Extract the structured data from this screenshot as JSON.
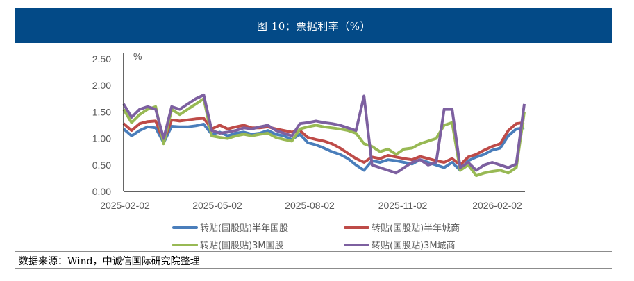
{
  "header": {
    "title": "图 10：票据利率（%）"
  },
  "source": {
    "text": "数据来源：Wind，中诚信国际研究院整理"
  },
  "legend": [
    {
      "label": "转贴(国股贴)半年国股",
      "color": "#4a7ebb"
    },
    {
      "label": "转贴(国股贴)半年城商",
      "color": "#be4b48"
    },
    {
      "label": "转贴(国股贴)3M国股",
      "color": "#98b954"
    },
    {
      "label": "转贴(国股贴)3M城商",
      "color": "#7d60a0"
    }
  ],
  "chart_data": {
    "type": "line",
    "title": "图 10：票据利率（%）",
    "xlabel": "",
    "ylabel": "%",
    "ylim": [
      0,
      2.5
    ],
    "yticks": [
      "0.00",
      "0.50",
      "1.00",
      "1.50",
      "2.00",
      "2.50"
    ],
    "xticks": [
      "2025-02-02",
      "2025-05-02",
      "2025-08-02",
      "2025-11-02",
      "2026-02-02"
    ],
    "x_range": [
      "2025-02-02",
      "2026-02-15"
    ],
    "grid": false,
    "legend_position": "bottom",
    "x": [
      0,
      0.02,
      0.04,
      0.06,
      0.08,
      0.1,
      0.12,
      0.14,
      0.16,
      0.18,
      0.2,
      0.22,
      0.24,
      0.26,
      0.28,
      0.3,
      0.32,
      0.34,
      0.36,
      0.38,
      0.4,
      0.42,
      0.44,
      0.46,
      0.48,
      0.5,
      0.52,
      0.54,
      0.56,
      0.58,
      0.6,
      0.62,
      0.64,
      0.66,
      0.68,
      0.7,
      0.72,
      0.74,
      0.76,
      0.78,
      0.8,
      0.82,
      0.84,
      0.86,
      0.88,
      0.9,
      0.92,
      0.94,
      0.96,
      0.98,
      1.0
    ],
    "series": [
      {
        "name": "转贴(国股贴)半年国股",
        "color": "#4a7ebb",
        "values": [
          1.18,
          1.05,
          1.15,
          1.22,
          1.2,
          0.92,
          1.23,
          1.22,
          1.22,
          1.24,
          1.27,
          1.08,
          1.12,
          1.05,
          1.1,
          1.12,
          1.08,
          1.1,
          1.15,
          1.08,
          1.05,
          0.98,
          1.08,
          0.92,
          0.88,
          0.82,
          0.75,
          0.7,
          0.62,
          0.5,
          0.4,
          0.58,
          0.55,
          0.6,
          0.58,
          0.55,
          0.52,
          0.6,
          0.55,
          0.5,
          0.45,
          0.55,
          0.4,
          0.58,
          0.65,
          0.7,
          0.78,
          0.82,
          1.05,
          1.18,
          1.2
        ]
      },
      {
        "name": "转贴(国股贴)半年城商",
        "color": "#be4b48",
        "values": [
          1.28,
          1.15,
          1.28,
          1.32,
          1.33,
          0.95,
          1.35,
          1.33,
          1.35,
          1.37,
          1.38,
          1.18,
          1.25,
          1.18,
          1.22,
          1.25,
          1.2,
          1.2,
          1.22,
          1.18,
          1.15,
          1.12,
          1.15,
          1.02,
          0.98,
          0.95,
          0.9,
          0.82,
          0.72,
          0.62,
          0.55,
          0.65,
          0.62,
          0.68,
          0.65,
          0.62,
          0.6,
          0.66,
          0.62,
          0.58,
          0.55,
          0.62,
          0.5,
          0.65,
          0.7,
          0.78,
          0.85,
          0.9,
          1.15,
          1.28,
          1.3
        ]
      },
      {
        "name": "转贴(国股贴)3M国股",
        "color": "#98b954",
        "values": [
          1.55,
          1.3,
          1.45,
          1.55,
          1.6,
          0.9,
          1.55,
          1.45,
          1.55,
          1.65,
          1.75,
          1.05,
          1.02,
          1.0,
          1.05,
          1.08,
          1.05,
          1.08,
          1.1,
          1.02,
          0.98,
          0.95,
          1.18,
          1.22,
          1.25,
          1.22,
          1.2,
          1.18,
          1.15,
          1.1,
          0.9,
          0.85,
          0.75,
          0.8,
          0.7,
          0.8,
          0.82,
          0.9,
          0.95,
          1.0,
          1.25,
          1.3,
          0.4,
          0.5,
          0.3,
          0.35,
          0.38,
          0.4,
          0.35,
          0.45,
          1.5
        ]
      },
      {
        "name": "转贴(国股贴)3M城商",
        "color": "#7d60a0",
        "values": [
          1.65,
          1.4,
          1.55,
          1.6,
          1.55,
          1.0,
          1.6,
          1.55,
          1.65,
          1.75,
          1.82,
          1.15,
          1.1,
          1.12,
          1.15,
          1.2,
          1.18,
          1.22,
          1.25,
          1.15,
          1.1,
          1.05,
          1.28,
          1.3,
          1.33,
          1.3,
          1.28,
          1.25,
          1.2,
          1.15,
          1.8,
          0.5,
          0.45,
          0.4,
          0.35,
          0.45,
          0.55,
          0.6,
          0.5,
          0.55,
          1.55,
          1.55,
          0.45,
          0.55,
          0.4,
          0.5,
          0.55,
          0.5,
          0.45,
          0.52,
          1.65
        ]
      }
    ]
  }
}
